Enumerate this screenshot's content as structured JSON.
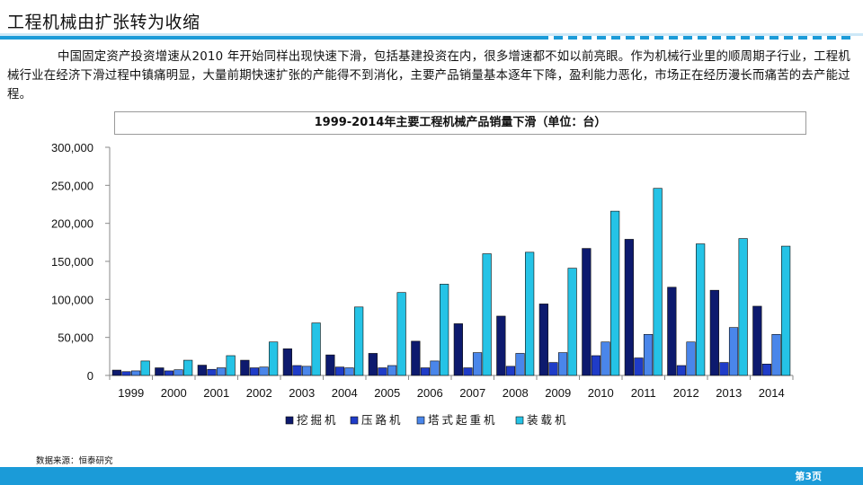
{
  "slide": {
    "title": "工程机械由扩张转为收缩",
    "paragraph": "中国固定资产投资增速从2010 年开始同样出现快速下滑，包括基建投资在内，很多增速都不如以前亮眼。作为机械行业里的顺周期子行业，工程机械行业在经济下滑过程中镇痛明显，大量前期快速扩张的产能得不到消化，主要产品销量基本逐年下降，盈利能力恶化，市场正在经历漫长而痛苦的去产能过程。",
    "source": "数据来源：恒泰研究",
    "page": "第3页"
  },
  "colors": {
    "accent": "#1b9bd8",
    "rule_light": "#cde8f7"
  },
  "chart_data": {
    "type": "bar",
    "title": "1999-2014年主要工程机械产品销量下滑（单位：台）",
    "categories": [
      "1999",
      "2000",
      "2001",
      "2002",
      "2003",
      "2004",
      "2005",
      "2006",
      "2007",
      "2008",
      "2009",
      "2010",
      "2011",
      "2012",
      "2013",
      "2014"
    ],
    "ylim": [
      0,
      300000
    ],
    "yticks": [
      "0",
      "50,000",
      "100,000",
      "150,000",
      "200,000",
      "250,000",
      "300,000"
    ],
    "grid": false,
    "legend_position": "bottom",
    "series": [
      {
        "name": "挖掘机",
        "color": "#0d1a6e",
        "values": [
          7000,
          10000,
          13500,
          20000,
          35000,
          27000,
          29000,
          45000,
          68000,
          78000,
          94000,
          167000,
          179000,
          116000,
          112000,
          91000
        ]
      },
      {
        "name": "压路机",
        "color": "#1f3cc8",
        "values": [
          5000,
          6000,
          8000,
          10000,
          13000,
          11000,
          10000,
          10000,
          10000,
          12000,
          17000,
          26000,
          23000,
          13000,
          17000,
          15000
        ]
      },
      {
        "name": "塔式起重机",
        "color": "#4a86ea",
        "values": [
          6000,
          7500,
          10000,
          11000,
          12000,
          10000,
          13000,
          19000,
          30000,
          29000,
          30000,
          44000,
          54000,
          44000,
          63000,
          54000
        ]
      },
      {
        "name": "装载机",
        "color": "#25c3e6",
        "values": [
          19000,
          20000,
          26000,
          44000,
          69000,
          90000,
          109000,
          120000,
          160000,
          162000,
          141000,
          216000,
          246000,
          173000,
          180000,
          170000
        ]
      }
    ]
  }
}
